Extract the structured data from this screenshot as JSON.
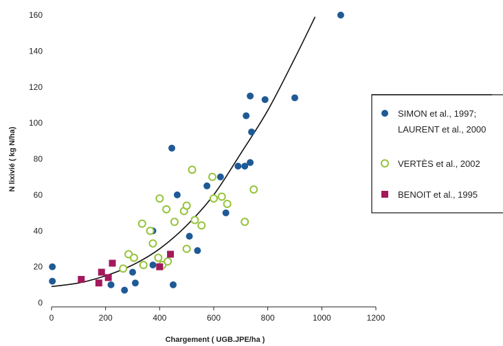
{
  "chart_data": {
    "type": "scatter",
    "title": "",
    "xlabel": "Chargement ( UGB.JPE/ha )",
    "ylabel": "N lixivié ( kg N/ha)",
    "xlim": [
      0,
      1200
    ],
    "ylim": [
      0,
      160
    ],
    "xticks": [
      "0",
      "200",
      "400",
      "600",
      "800",
      "1000",
      "1200"
    ],
    "yticks": [
      "0",
      "20",
      "40",
      "60",
      "80",
      "100",
      "120",
      "140",
      "160"
    ],
    "grid": false,
    "legend_position": "right",
    "colors": {
      "simon": "#1f5a96",
      "vertes": "#94c33a",
      "benoit": "#a3195b",
      "curve": "#111111"
    },
    "series": [
      {
        "name": "SIMON et al., 1997;",
        "name_line2": "LAURENT et al., 2000",
        "marker": "filled-circle",
        "points": [
          [
            3,
            20
          ],
          [
            3,
            12
          ],
          [
            220,
            10
          ],
          [
            270,
            7
          ],
          [
            300,
            17
          ],
          [
            310,
            11
          ],
          [
            375,
            40
          ],
          [
            375,
            21
          ],
          [
            445,
            86
          ],
          [
            450,
            10
          ],
          [
            465,
            60
          ],
          [
            510,
            37
          ],
          [
            540,
            29
          ],
          [
            575,
            65
          ],
          [
            625,
            70
          ],
          [
            645,
            50
          ],
          [
            690,
            76
          ],
          [
            715,
            76
          ],
          [
            720,
            104
          ],
          [
            735,
            78
          ],
          [
            735,
            115
          ],
          [
            740,
            95
          ],
          [
            790,
            113
          ],
          [
            900,
            114
          ],
          [
            1070,
            160
          ]
        ]
      },
      {
        "name": "VERTÈS et al., 2002",
        "marker": "open-circle",
        "points": [
          [
            265,
            19
          ],
          [
            285,
            27
          ],
          [
            305,
            25
          ],
          [
            335,
            44
          ],
          [
            340,
            21
          ],
          [
            365,
            40
          ],
          [
            375,
            33
          ],
          [
            395,
            25
          ],
          [
            400,
            58
          ],
          [
            410,
            21
          ],
          [
            425,
            52
          ],
          [
            430,
            23
          ],
          [
            455,
            45
          ],
          [
            490,
            51
          ],
          [
            500,
            54
          ],
          [
            500,
            30
          ],
          [
            520,
            74
          ],
          [
            530,
            46
          ],
          [
            555,
            43
          ],
          [
            595,
            70
          ],
          [
            600,
            58
          ],
          [
            630,
            59
          ],
          [
            650,
            55
          ],
          [
            715,
            45
          ],
          [
            748,
            63
          ]
        ]
      },
      {
        "name": "BENOIT et al., 1995",
        "marker": "filled-square",
        "points": [
          [
            110,
            13
          ],
          [
            175,
            11
          ],
          [
            185,
            17
          ],
          [
            210,
            14
          ],
          [
            225,
            22
          ],
          [
            400,
            20
          ],
          [
            440,
            27
          ]
        ]
      }
    ],
    "trend_curve": {
      "type": "exponential",
      "points": [
        [
          0,
          9
        ],
        [
          100,
          11
        ],
        [
          200,
          15
        ],
        [
          300,
          21
        ],
        [
          400,
          30
        ],
        [
          500,
          43
        ],
        [
          600,
          60
        ],
        [
          700,
          83
        ],
        [
          800,
          107
        ],
        [
          900,
          136
        ],
        [
          975,
          159
        ]
      ]
    }
  }
}
